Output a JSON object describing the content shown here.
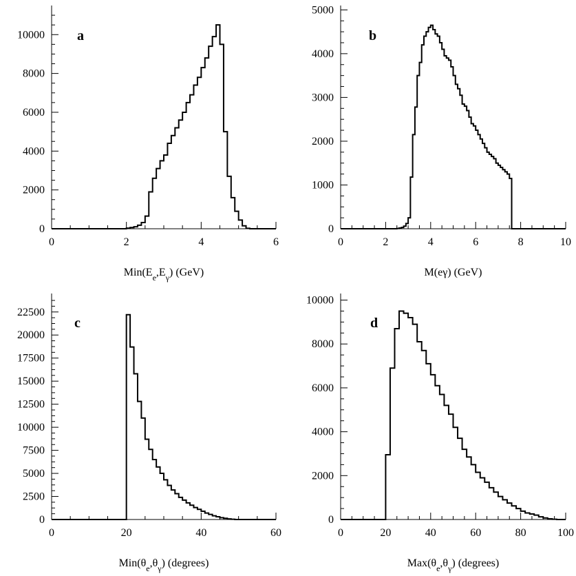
{
  "chart_data": [
    {
      "id": "a",
      "type": "step",
      "panel_label": "a",
      "xlabel": "Min(E_e,E_γ) (GeV)",
      "xlabel_parts": {
        "base": "Min(E",
        "sub1": "e",
        "mid": ",E",
        "sub2": "γ",
        "end": ") (GeV)"
      },
      "xlim": [
        0,
        6
      ],
      "ylim": [
        0,
        11500
      ],
      "xticks": [
        0,
        2,
        4,
        6
      ],
      "yticks": [
        0,
        2000,
        4000,
        6000,
        8000,
        10000
      ],
      "xtick_labels": [
        "0",
        "2",
        "4",
        "6"
      ],
      "ytick_labels": [
        "0",
        "2000",
        "4000",
        "6000",
        "8000",
        "10000"
      ],
      "bin_width": 0.1,
      "bin_start": 2.0,
      "values": [
        30,
        60,
        100,
        180,
        320,
        650,
        1900,
        2600,
        3100,
        3500,
        3800,
        4400,
        4800,
        5200,
        5600,
        6000,
        6500,
        6900,
        7400,
        7800,
        8300,
        8800,
        9400,
        9900,
        10500,
        9500,
        5000,
        2700,
        1600,
        900,
        450,
        150,
        20,
        0
      ]
    },
    {
      "id": "b",
      "type": "step",
      "panel_label": "b",
      "xlabel": "M(eγ) (GeV)",
      "xlabel_parts": {
        "base": "M(eγ) (GeV)",
        "sub1": "",
        "mid": "",
        "sub2": "",
        "end": ""
      },
      "xlim": [
        0,
        10
      ],
      "ylim": [
        0,
        5100
      ],
      "xticks": [
        0,
        2,
        4,
        6,
        8,
        10
      ],
      "yticks": [
        0,
        1000,
        2000,
        3000,
        4000,
        5000
      ],
      "xtick_labels": [
        "0",
        "2",
        "4",
        "6",
        "8",
        "10"
      ],
      "ytick_labels": [
        "0",
        "1000",
        "2000",
        "3000",
        "4000",
        "5000"
      ],
      "bin_width": 0.1,
      "bin_start": 2.5,
      "values": [
        5,
        15,
        30,
        60,
        120,
        250,
        1180,
        2150,
        2780,
        3500,
        3800,
        4200,
        4400,
        4500,
        4600,
        4650,
        4550,
        4450,
        4400,
        4250,
        4100,
        3950,
        3900,
        3850,
        3700,
        3500,
        3300,
        3200,
        3050,
        2850,
        2800,
        2700,
        2550,
        2400,
        2350,
        2250,
        2150,
        2050,
        1950,
        1850,
        1750,
        1700,
        1650,
        1600,
        1500,
        1450,
        1400,
        1350,
        1300,
        1250,
        1150
      ]
    },
    {
      "id": "c",
      "type": "step",
      "panel_label": "c",
      "xlabel": "Min(θ_e,θ_γ) (degrees)",
      "xlabel_parts": {
        "base": "Min(θ",
        "sub1": "e",
        "mid": ",θ",
        "sub2": "γ",
        "end": ") (degrees)"
      },
      "xlim": [
        0,
        60
      ],
      "ylim": [
        0,
        24500
      ],
      "xticks": [
        0,
        20,
        40,
        60
      ],
      "yticks": [
        0,
        2500,
        5000,
        7500,
        10000,
        12500,
        15000,
        17500,
        20000,
        22500
      ],
      "xtick_labels": [
        "0",
        "20",
        "40",
        "60"
      ],
      "ytick_labels": [
        "0",
        "2500",
        "5000",
        "7500",
        "10000",
        "12500",
        "15000",
        "17500",
        "20000",
        "22500"
      ],
      "bin_width": 1,
      "bin_start": 20,
      "values": [
        22200,
        18700,
        15800,
        12800,
        11000,
        8700,
        7600,
        6500,
        5700,
        5000,
        4300,
        3700,
        3200,
        2800,
        2400,
        2100,
        1800,
        1550,
        1300,
        1100,
        900,
        700,
        550,
        400,
        300,
        200,
        130,
        70,
        30
      ]
    },
    {
      "id": "d",
      "type": "step",
      "panel_label": "d",
      "xlabel": "Max(θ_e,θ_γ) (degrees)",
      "xlabel_parts": {
        "base": "Max(θ",
        "sub1": "e",
        "mid": ",θ",
        "sub2": "γ",
        "end": ") (degrees)"
      },
      "xlim": [
        0,
        100
      ],
      "ylim": [
        0,
        10300
      ],
      "xticks": [
        0,
        20,
        40,
        60,
        80,
        100
      ],
      "yticks": [
        0,
        2000,
        4000,
        6000,
        8000,
        10000
      ],
      "xtick_labels": [
        "0",
        "20",
        "40",
        "60",
        "80",
        "100"
      ],
      "ytick_labels": [
        "0",
        "2000",
        "4000",
        "6000",
        "8000",
        "10000"
      ],
      "bin_width": 2,
      "bin_start": 20,
      "values": [
        2950,
        6900,
        8700,
        9500,
        9400,
        9200,
        8900,
        8100,
        7700,
        7100,
        6600,
        6100,
        5700,
        5200,
        4800,
        4200,
        3700,
        3200,
        2850,
        2500,
        2150,
        1900,
        1700,
        1450,
        1250,
        1050,
        900,
        750,
        620,
        500,
        380,
        300,
        250,
        200,
        120,
        70,
        30,
        10,
        0,
        0
      ]
    }
  ]
}
